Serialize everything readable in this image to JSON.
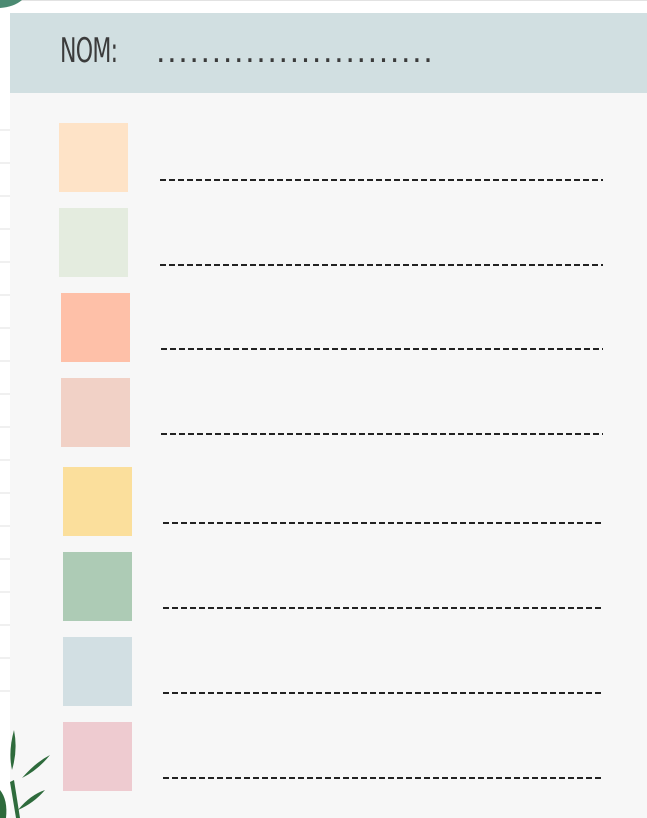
{
  "header": {
    "title": "NOM:",
    "blank": "........................."
  }
}
